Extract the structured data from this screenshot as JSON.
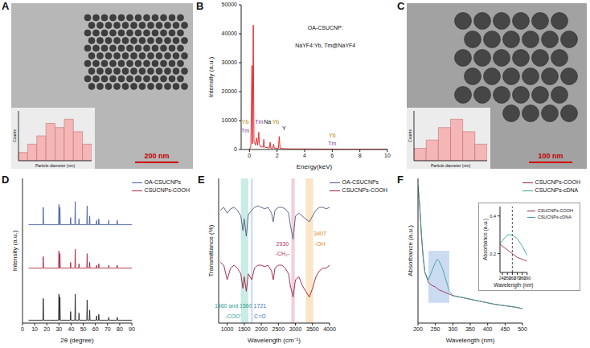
{
  "chart_data": [
    {
      "panel": "A",
      "type": "image",
      "scale_bar": "200 nm",
      "inset": {
        "type": "histogram",
        "x_label": "Particle diameter (nm)",
        "y_label": "Counts",
        "bins": [
          16,
          18,
          20,
          22,
          24,
          26,
          28,
          30,
          32
        ],
        "counts": [
          2,
          4,
          6,
          9,
          8,
          10,
          7,
          4
        ],
        "ylim": [
          0,
          12
        ],
        "tick_labels": false,
        "color": "#f4b6b6"
      }
    },
    {
      "panel": "B",
      "type": "line",
      "x_label": "Energy(keV)",
      "y_label": "Intensity (a.u.)",
      "x": [
        0,
        0.1,
        0.18,
        0.22,
        0.28,
        0.33,
        0.45,
        0.52,
        0.6,
        0.68,
        0.72,
        0.8,
        1.0,
        1.04,
        1.1,
        1.45,
        1.5,
        1.55,
        1.7,
        1.75,
        1.8,
        2.1,
        2.16,
        2.22,
        2.5,
        3,
        4,
        5,
        6,
        7,
        8,
        9,
        10
      ],
      "series": [
        {
          "color": "#e41a1c",
          "values": [
            0,
            1000,
            29000,
            2000,
            43000,
            3000,
            1500,
            4000,
            1500,
            6000,
            2000,
            1000,
            800,
            3500,
            800,
            500,
            2500,
            500,
            500,
            1800,
            500,
            400,
            4500,
            400,
            300,
            200,
            200,
            150,
            150,
            100,
            100,
            100,
            100
          ]
        }
      ],
      "xlim": [
        -0.6,
        10
      ],
      "xticks": [
        0,
        2,
        4,
        6,
        8,
        10
      ],
      "ylim": [
        0,
        50000
      ],
      "yticks": [
        0,
        10000,
        20000,
        30000,
        40000,
        50000
      ],
      "annotations": [
        {
          "text": "OA-CSUCNP:",
          "x": 5.5,
          "y": 42000,
          "color": "#111111"
        },
        {
          "text": "NaYF4:Yb, Tm@NaYF4",
          "x": 5.5,
          "y": 36000,
          "color": "#111111"
        },
        {
          "text": "Yb",
          "x": -0.3,
          "y": 9500,
          "color": "#b8860b"
        },
        {
          "text": "Tm",
          "x": -0.3,
          "y": 6500,
          "color": "#7b3f99"
        },
        {
          "text": "Tm",
          "x": 0.7,
          "y": 9500,
          "color": "#7b3f99"
        },
        {
          "text": "Na",
          "x": 1.3,
          "y": 9500,
          "color": "#111111"
        },
        {
          "text": "Yb",
          "x": 1.9,
          "y": 9500,
          "color": "#b8860b"
        },
        {
          "text": "Y",
          "x": 2.5,
          "y": 7500,
          "color": "#111111"
        },
        {
          "text": "Yb",
          "x": 6,
          "y": 5000,
          "color": "#b8860b"
        },
        {
          "text": "Tm",
          "x": 6,
          "y": 2200,
          "color": "#7b3f99"
        }
      ]
    },
    {
      "panel": "C",
      "type": "image",
      "scale_bar": "100 nm",
      "inset": {
        "type": "histogram",
        "x_label": "Particle diameter (nm)",
        "y_label": "Counts",
        "bins": [
          22,
          24,
          26,
          28,
          30,
          32,
          34
        ],
        "counts": [
          3,
          5,
          8,
          10,
          7,
          4
        ],
        "ylim": [
          0,
          12
        ],
        "tick_labels": false,
        "color": "#f4b6b6"
      }
    },
    {
      "panel": "D",
      "type": "line",
      "x_label": "2θ (degree)",
      "y_label": "Intensity (a.u.)",
      "x": [
        5,
        16.8,
        17.1,
        17.4,
        29.7,
        30.0,
        30.3,
        30.5,
        30.8,
        31.1,
        39.3,
        39.6,
        39.9,
        43.1,
        43.4,
        43.7,
        46.2,
        46.5,
        46.8,
        52.9,
        53.2,
        53.5,
        55.0,
        55.3,
        55.6,
        60.7,
        61.0,
        61.3,
        62.5,
        62.8,
        63.1,
        70.7,
        71.0,
        71.3,
        77.7,
        78.0,
        78.3,
        90
      ],
      "series": [
        {
          "name": "OA-CSUCNPs",
          "color": "#4a5fa8",
          "values": [
            68,
            68,
            80,
            68,
            68,
            82,
            68,
            68,
            80,
            68,
            68,
            73,
            68,
            68,
            84,
            68,
            68,
            72,
            68,
            68,
            81,
            68,
            68,
            74,
            68,
            68,
            71,
            68,
            68,
            72,
            68,
            68,
            71,
            68,
            68,
            71,
            68,
            68
          ]
        },
        {
          "name": "CSUCNPs-COOH",
          "color": "#a8263e",
          "values": [
            38,
            38,
            46,
            38,
            38,
            50,
            38,
            38,
            48,
            38,
            38,
            42,
            38,
            38,
            51,
            38,
            38,
            41,
            38,
            38,
            48,
            38,
            38,
            42,
            38,
            38,
            40,
            38,
            38,
            41,
            38,
            38,
            40,
            38,
            38,
            40,
            38,
            38
          ]
        },
        {
          "color": "#222222",
          "values": [
            2,
            2,
            17,
            2,
            2,
            20,
            2,
            2,
            18,
            2,
            2,
            8,
            2,
            2,
            20,
            2,
            2,
            7,
            2,
            2,
            16,
            2,
            2,
            9,
            2,
            2,
            5,
            2,
            2,
            6,
            2,
            2,
            4,
            2,
            2,
            4,
            2,
            2
          ]
        }
      ],
      "xlim": [
        0,
        90
      ],
      "xticks": [
        0,
        10,
        20,
        30,
        40,
        50,
        60,
        70,
        80,
        90
      ],
      "ylim": [
        0,
        100
      ],
      "tick_labels": "x",
      "legend": "upper right"
    },
    {
      "panel": "E",
      "type": "line",
      "x_label": "Wavelength (cm⁻¹)",
      "y_label": "Transmittance (%)",
      "x": [
        800,
        900,
        1000,
        1100,
        1200,
        1300,
        1400,
        1460,
        1500,
        1560,
        1620,
        1721,
        1800,
        1900,
        2000,
        2100,
        2200,
        2300,
        2350,
        2400,
        2500,
        2600,
        2700,
        2800,
        2850,
        2930,
        3000,
        3100,
        3200,
        3300,
        3407,
        3500,
        3600,
        3700,
        3800,
        3900,
        4000
      ],
      "series": [
        {
          "name": "OA-CSUCNPs",
          "color": "#4b5a80",
          "values": [
            78,
            80,
            76,
            79,
            80,
            78,
            74,
            64,
            72,
            60,
            75,
            78,
            80,
            81,
            80,
            79,
            80,
            76,
            70,
            78,
            80,
            80,
            79,
            76,
            68,
            58,
            74,
            76,
            74,
            72,
            70,
            74,
            78,
            80,
            80,
            79,
            80
          ]
        },
        {
          "name": "CSUCNPs-COOH",
          "color": "#9b1b3a",
          "values": [
            42,
            40,
            30,
            38,
            40,
            38,
            34,
            24,
            32,
            22,
            34,
            30,
            38,
            40,
            40,
            39,
            40,
            36,
            30,
            38,
            40,
            40,
            38,
            34,
            26,
            18,
            30,
            32,
            26,
            22,
            18,
            24,
            32,
            36,
            38,
            38,
            40
          ]
        }
      ],
      "xlim": [
        750,
        4000
      ],
      "xticks": [
        1000,
        1500,
        2000,
        2500,
        3000,
        3500,
        4000
      ],
      "ylim": [
        0,
        100
      ],
      "tick_labels": "x",
      "legend": "upper right",
      "bands": [
        {
          "x1": 1400,
          "x2": 1620,
          "color": "#a8ddd5"
        },
        {
          "x1": 1690,
          "x2": 1750,
          "color": "#b3cdee"
        },
        {
          "x1": 2880,
          "x2": 2980,
          "color": "#eab0c0"
        },
        {
          "x1": 3300,
          "x2": 3520,
          "color": "#f7d3a3"
        }
      ],
      "annotations": [
        {
          "text": "1460 and 1560",
          "x": 1180,
          "y": 12,
          "color": "#2e9c8f"
        },
        {
          "text": "-COO⁻",
          "x": 1180,
          "y": 5,
          "color": "#2e9c8f"
        },
        {
          "text": "1721",
          "x": 1960,
          "y": 12,
          "color": "#3b6fb6"
        },
        {
          "text": "C=O",
          "x": 1960,
          "y": 5,
          "color": "#3b6fb6"
        },
        {
          "text": "2930",
          "x": 2620,
          "y": 55,
          "color": "#b03060"
        },
        {
          "text": "-CH₂-",
          "x": 2620,
          "y": 48,
          "color": "#b03060"
        },
        {
          "text": "3407",
          "x": 3720,
          "y": 62,
          "color": "#e08a1e"
        },
        {
          "text": "-OH",
          "x": 3720,
          "y": 55,
          "color": "#e08a1e"
        }
      ]
    },
    {
      "panel": "F",
      "type": "line",
      "x_label": "Wavelength (nm)",
      "y_label": "Absorbance (a.u.)",
      "x": [
        200,
        205,
        210,
        215,
        220,
        230,
        240,
        250,
        255,
        260,
        270,
        280,
        290,
        300,
        320,
        340,
        360,
        380,
        400,
        420,
        450,
        480,
        500
      ],
      "series": [
        {
          "name": "CSUCNPs-COOH",
          "color": "#8e2a4e",
          "values": [
            95,
            80,
            60,
            45,
            35,
            28,
            26,
            25,
            24,
            23,
            22,
            21,
            20,
            19,
            18,
            17,
            16,
            15,
            14,
            13,
            12,
            11,
            10
          ]
        },
        {
          "name": "CSUCNPs-cDNA",
          "color": "#3aa0a0",
          "values": [
            95,
            82,
            62,
            45,
            35,
            30,
            36,
            42,
            44,
            43,
            38,
            30,
            22,
            19,
            18,
            17,
            16,
            15,
            14,
            13,
            12,
            11,
            10
          ]
        }
      ],
      "xlim": [
        200,
        500
      ],
      "xticks": [
        200,
        250,
        300,
        350,
        400,
        450,
        500
      ],
      "ylim": [
        0,
        100
      ],
      "tick_labels": "x",
      "legend": "upper right",
      "bands": [
        {
          "x1": 230,
          "x2": 290,
          "y1": 14,
          "y2": 50,
          "color": "#a9c4ea"
        }
      ],
      "inset": {
        "type": "line",
        "x_label": "Wavelength (nm)",
        "y_label": "Absorbance (a.u.)",
        "x": [
          235,
          240,
          250,
          260,
          270,
          280,
          290
        ],
        "series": [
          {
            "name": "CSUCNPs-COOH",
            "color": "#8e2a4e",
            "values": [
              0.25,
              0.24,
              0.22,
              0.2,
              0.18,
              0.17,
              0.16
            ]
          },
          {
            "name": "CSUCNPs-cDNA",
            "color": "#3aa0a0",
            "values": [
              0.25,
              0.27,
              0.3,
              0.3,
              0.28,
              0.24,
              0.19
            ]
          }
        ],
        "xlim": [
          235,
          290
        ],
        "xticks": [
          240,
          250,
          260,
          270,
          280,
          290
        ],
        "ylim": [
          0.1,
          0.45
        ],
        "yticks": [
          0.2,
          0.4
        ],
        "reference_x": 260,
        "legend": "upper right"
      }
    }
  ]
}
